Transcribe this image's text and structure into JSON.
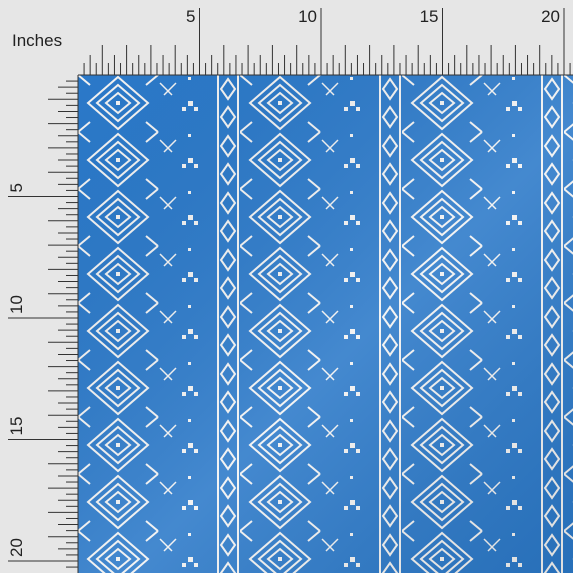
{
  "ruler": {
    "unit": "Inches",
    "top_labels": [
      5,
      10,
      15,
      20
    ],
    "left_labels": [
      5,
      10,
      15,
      20
    ]
  }
}
